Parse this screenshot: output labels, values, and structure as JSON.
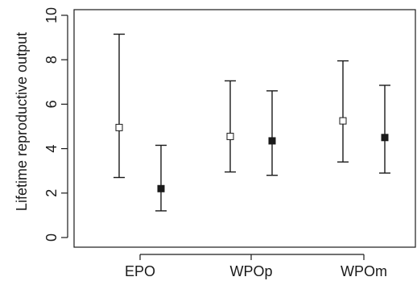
{
  "chart_data": {
    "type": "scatter",
    "subtype": "point-range",
    "title": "",
    "xlabel": "",
    "ylabel": "Lifetime reproductive output",
    "categories": [
      "EPO",
      "WPOp",
      "WPOm"
    ],
    "ylim": [
      0,
      10
    ],
    "yticks": [
      0,
      2,
      4,
      6,
      8,
      10
    ],
    "grid": false,
    "legend": "none",
    "series": [
      {
        "marker": "open-square",
        "color": "#1a1a1a",
        "points": [
          {
            "category": "EPO",
            "value": 4.95,
            "lower": 2.7,
            "upper": 9.15
          },
          {
            "category": "WPOp",
            "value": 4.55,
            "lower": 2.95,
            "upper": 7.05
          },
          {
            "category": "WPOm",
            "value": 5.25,
            "lower": 3.4,
            "upper": 7.95
          }
        ]
      },
      {
        "marker": "filled-square",
        "color": "#1a1a1a",
        "points": [
          {
            "category": "EPO",
            "value": 2.2,
            "lower": 1.2,
            "upper": 4.15
          },
          {
            "category": "WPOp",
            "value": 4.35,
            "lower": 2.8,
            "upper": 6.6
          },
          {
            "category": "WPOm",
            "value": 4.5,
            "lower": 2.9,
            "upper": 6.85
          }
        ]
      }
    ]
  }
}
